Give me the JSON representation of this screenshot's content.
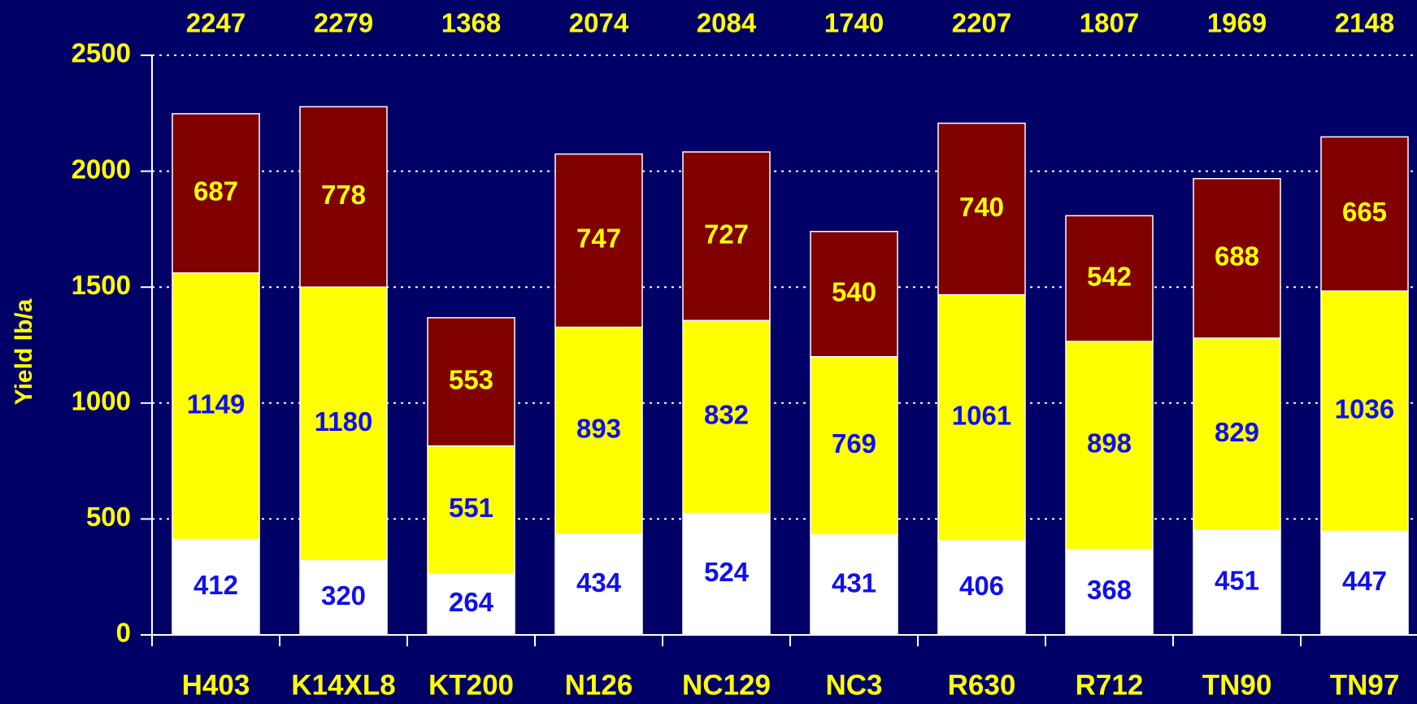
{
  "chart_data": {
    "type": "stacked_bar",
    "y_label": "Yield lb/a",
    "categories": [
      "H403",
      "K14XL8",
      "KT200",
      "N126",
      "NC129",
      "NC3",
      "R630",
      "R712",
      "TN90",
      "TN97"
    ],
    "series": [
      {
        "color": "#ffffff",
        "label_color": "#1010ee",
        "values": [
          412,
          320,
          264,
          434,
          524,
          431,
          406,
          368,
          451,
          447
        ]
      },
      {
        "color": "#ffff00",
        "label_color": "#1010ee",
        "values": [
          1149,
          1180,
          551,
          893,
          832,
          769,
          1061,
          898,
          829,
          1036
        ]
      },
      {
        "color": "#800000",
        "label_color": "#ffff00",
        "values": [
          687,
          778,
          553,
          747,
          727,
          540,
          740,
          542,
          688,
          665
        ]
      }
    ],
    "totals": [
      2247,
      2279,
      1368,
      2074,
      2084,
      1740,
      2207,
      1807,
      1969,
      2148
    ],
    "ylim": [
      0,
      2500
    ],
    "yticks": [
      0,
      500,
      1000,
      1500,
      2000,
      2500
    ],
    "grid": true
  }
}
